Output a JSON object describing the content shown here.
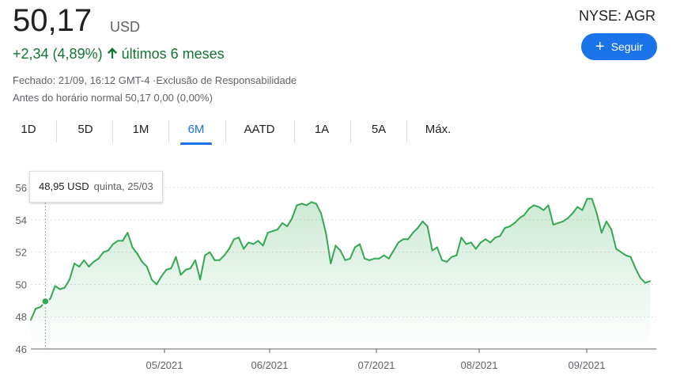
{
  "quote": {
    "price": "50,17",
    "currency": "USD",
    "change_text": "+2,34 (4,89%)",
    "period_text": "últimos 6 meses",
    "ticker": "NYSE: AGR",
    "follow_label": "Seguir",
    "closed_text": "Fechado: 21/09, 16:12 GMT-4 ·Exclusão de Responsabilidade",
    "premarket_text": "Antes do horário normal 50,17 0,00 (0,00%)",
    "positive_color": "#137333",
    "accent_color": "#1a73e8"
  },
  "tabs": [
    {
      "label": "1D",
      "active": false
    },
    {
      "label": "5D",
      "active": false
    },
    {
      "label": "1M",
      "active": false
    },
    {
      "label": "6M",
      "active": true
    },
    {
      "label": "AATD",
      "active": false
    },
    {
      "label": "1A",
      "active": false
    },
    {
      "label": "5A",
      "active": false
    },
    {
      "label": "Máx.",
      "active": false
    }
  ],
  "tooltip": {
    "value": "48,95 USD",
    "date": "quinta, 25/03"
  },
  "chart_data": {
    "type": "area",
    "ylim": [
      46,
      56
    ],
    "y_ticks": [
      "46",
      "48",
      "50",
      "52",
      "54",
      "56"
    ],
    "x_ticks": [
      "05/2021",
      "06/2021",
      "07/2021",
      "08/2021",
      "09/2021"
    ],
    "grid": "horizontal-dotted",
    "line_color": "#34a853",
    "highlight_index": 3,
    "series": [
      {
        "values": [
          47.8,
          48.5,
          48.6,
          48.95,
          49.1,
          49.9,
          49.7,
          49.8,
          50.3,
          51.3,
          51.1,
          51.5,
          51.1,
          51.4,
          51.6,
          52.0,
          52.1,
          52.5,
          52.7,
          52.7,
          53.2,
          52.3,
          51.9,
          51.4,
          51.1,
          50.3,
          50.0,
          50.5,
          50.9,
          51.0,
          51.7,
          50.6,
          50.9,
          51.0,
          51.5,
          50.3,
          51.8,
          52.0,
          51.5,
          51.5,
          51.8,
          52.2,
          52.8,
          52.9,
          52.2,
          52.6,
          52.5,
          52.7,
          52.4,
          53.2,
          53.3,
          53.4,
          53.8,
          53.6,
          54.1,
          54.9,
          55.0,
          54.9,
          55.1,
          55.0,
          54.4,
          53.2,
          51.3,
          52.4,
          52.1,
          51.5,
          51.6,
          52.3,
          52.5,
          51.6,
          51.5,
          51.6,
          51.6,
          51.8,
          51.6,
          52.1,
          52.6,
          52.8,
          52.8,
          53.2,
          53.5,
          53.9,
          53.6,
          52.1,
          52.3,
          51.5,
          51.4,
          51.7,
          51.8,
          52.9,
          52.5,
          52.6,
          52.2,
          52.6,
          52.8,
          52.6,
          52.9,
          53.0,
          53.5,
          53.6,
          53.8,
          54.1,
          54.3,
          54.7,
          54.9,
          54.8,
          54.6,
          54.9,
          53.7,
          53.8,
          53.9,
          54.1,
          54.4,
          54.8,
          54.6,
          55.3,
          55.3,
          54.4,
          53.2,
          53.9,
          53.4,
          52.2,
          52.0,
          51.8,
          51.7,
          51.0,
          50.4,
          50.1,
          50.2
        ]
      }
    ]
  }
}
